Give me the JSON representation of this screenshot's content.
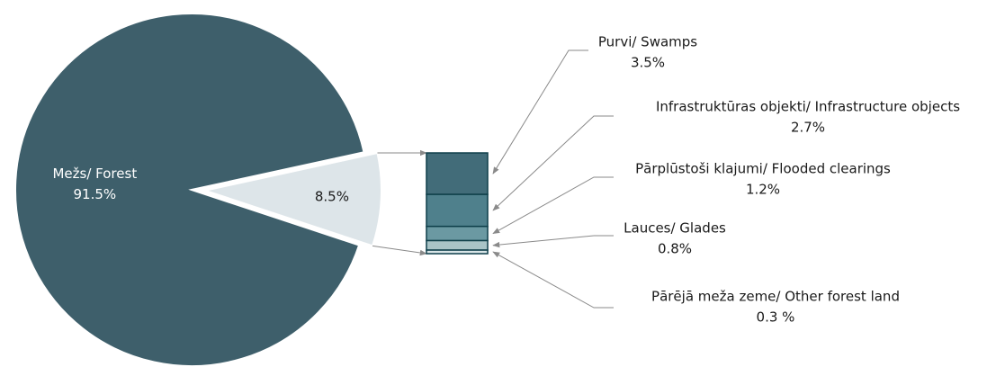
{
  "chart_data": [
    {
      "type": "pie",
      "categories": [
        "Mežs/ Forest",
        null
      ],
      "values": [
        91.5,
        8.5
      ],
      "value_labels": [
        "91.5%",
        "8.5%"
      ],
      "colors": [
        "#3e5f6b",
        "#dde5e9"
      ]
    },
    {
      "type": "stacked_bar",
      "categories": [
        "Purvi/ Swamps",
        "Infrastruktūras objekti/ Infrastructure objects",
        "Pārplūstoši klajumi/ Flooded clearings",
        "Lauces/ Glades",
        "Pārējā meža zeme/ Other forest land"
      ],
      "values": [
        3.5,
        2.7,
        1.2,
        0.8,
        0.3
      ],
      "value_labels": [
        "3.5%",
        "2.7%",
        "1.2%",
        "0.8%",
        "0.3 %"
      ],
      "colors": [
        "#426c79",
        "#4f808c",
        "#6b99a2",
        "#a9c4c7",
        "#d8e5e7"
      ]
    }
  ]
}
